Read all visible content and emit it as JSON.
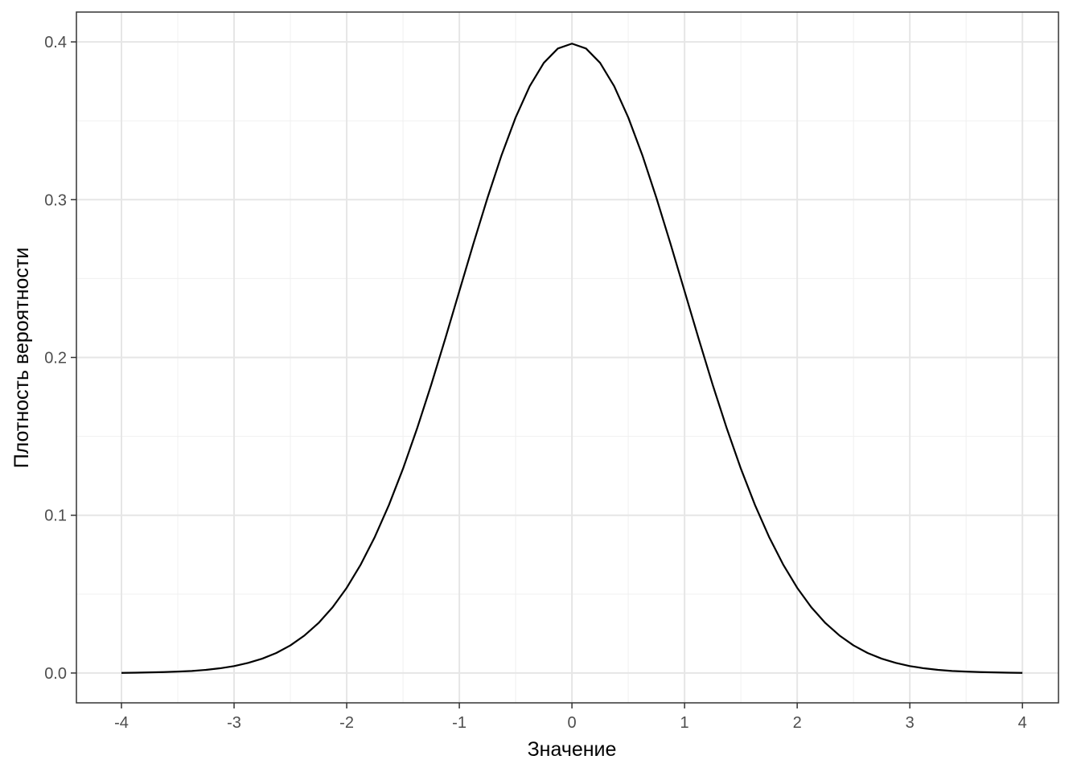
{
  "chart_data": {
    "type": "line",
    "x_label": "Значение",
    "y_label": "Плотность вероятности",
    "x": [
      -4,
      -3.875,
      -3.75,
      -3.625,
      -3.5,
      -3.375,
      -3.25,
      -3.125,
      -3,
      -2.875,
      -2.75,
      -2.625,
      -2.5,
      -2.375,
      -2.25,
      -2.125,
      -2,
      -1.875,
      -1.75,
      -1.625,
      -1.5,
      -1.375,
      -1.25,
      -1.125,
      -1,
      -0.875,
      -0.75,
      -0.625,
      -0.5,
      -0.375,
      -0.25,
      -0.125,
      0,
      0.125,
      0.25,
      0.375,
      0.5,
      0.625,
      0.75,
      0.875,
      1,
      1.125,
      1.25,
      1.375,
      1.5,
      1.625,
      1.75,
      1.875,
      2,
      2.125,
      2.25,
      2.375,
      2.5,
      2.625,
      2.75,
      2.875,
      3,
      3.125,
      3.25,
      3.375,
      3.5,
      3.625,
      3.75,
      3.875,
      4
    ],
    "values": [
      0.0001,
      0.0002,
      0.0004,
      0.0006,
      0.0009,
      0.0013,
      0.002,
      0.003,
      0.0044,
      0.0064,
      0.0091,
      0.0127,
      0.0175,
      0.0238,
      0.0317,
      0.0417,
      0.054,
      0.0688,
      0.0863,
      0.1065,
      0.1295,
      0.155,
      0.1826,
      0.2119,
      0.242,
      0.2721,
      0.3011,
      0.3282,
      0.3521,
      0.3719,
      0.3867,
      0.3958,
      0.3989,
      0.3958,
      0.3867,
      0.3719,
      0.3521,
      0.3282,
      0.3011,
      0.2721,
      0.242,
      0.2119,
      0.1826,
      0.155,
      0.1295,
      0.1065,
      0.0863,
      0.0688,
      0.054,
      0.0417,
      0.0317,
      0.0238,
      0.0175,
      0.0127,
      0.0091,
      0.0064,
      0.0044,
      0.003,
      0.002,
      0.0013,
      0.0009,
      0.0006,
      0.0004,
      0.0002,
      0.0001
    ],
    "color": "#000000",
    "xlim": [
      -4.4,
      4.32
    ],
    "ylim": [
      -0.0189,
      0.4189
    ],
    "xticks": [
      -4,
      -3,
      -2,
      -1,
      0,
      1,
      2,
      3,
      4
    ],
    "yticks": [
      {
        "value": 0,
        "label": "0.0"
      },
      0.1,
      0.2,
      0.3,
      0.4
    ],
    "xminor": [
      -3.5,
      -2.5,
      -1.5,
      -0.5,
      0.5,
      1.5,
      2.5,
      3.5
    ],
    "yminor": [
      0.05,
      0.15,
      0.25,
      0.35
    ],
    "grid": true
  }
}
